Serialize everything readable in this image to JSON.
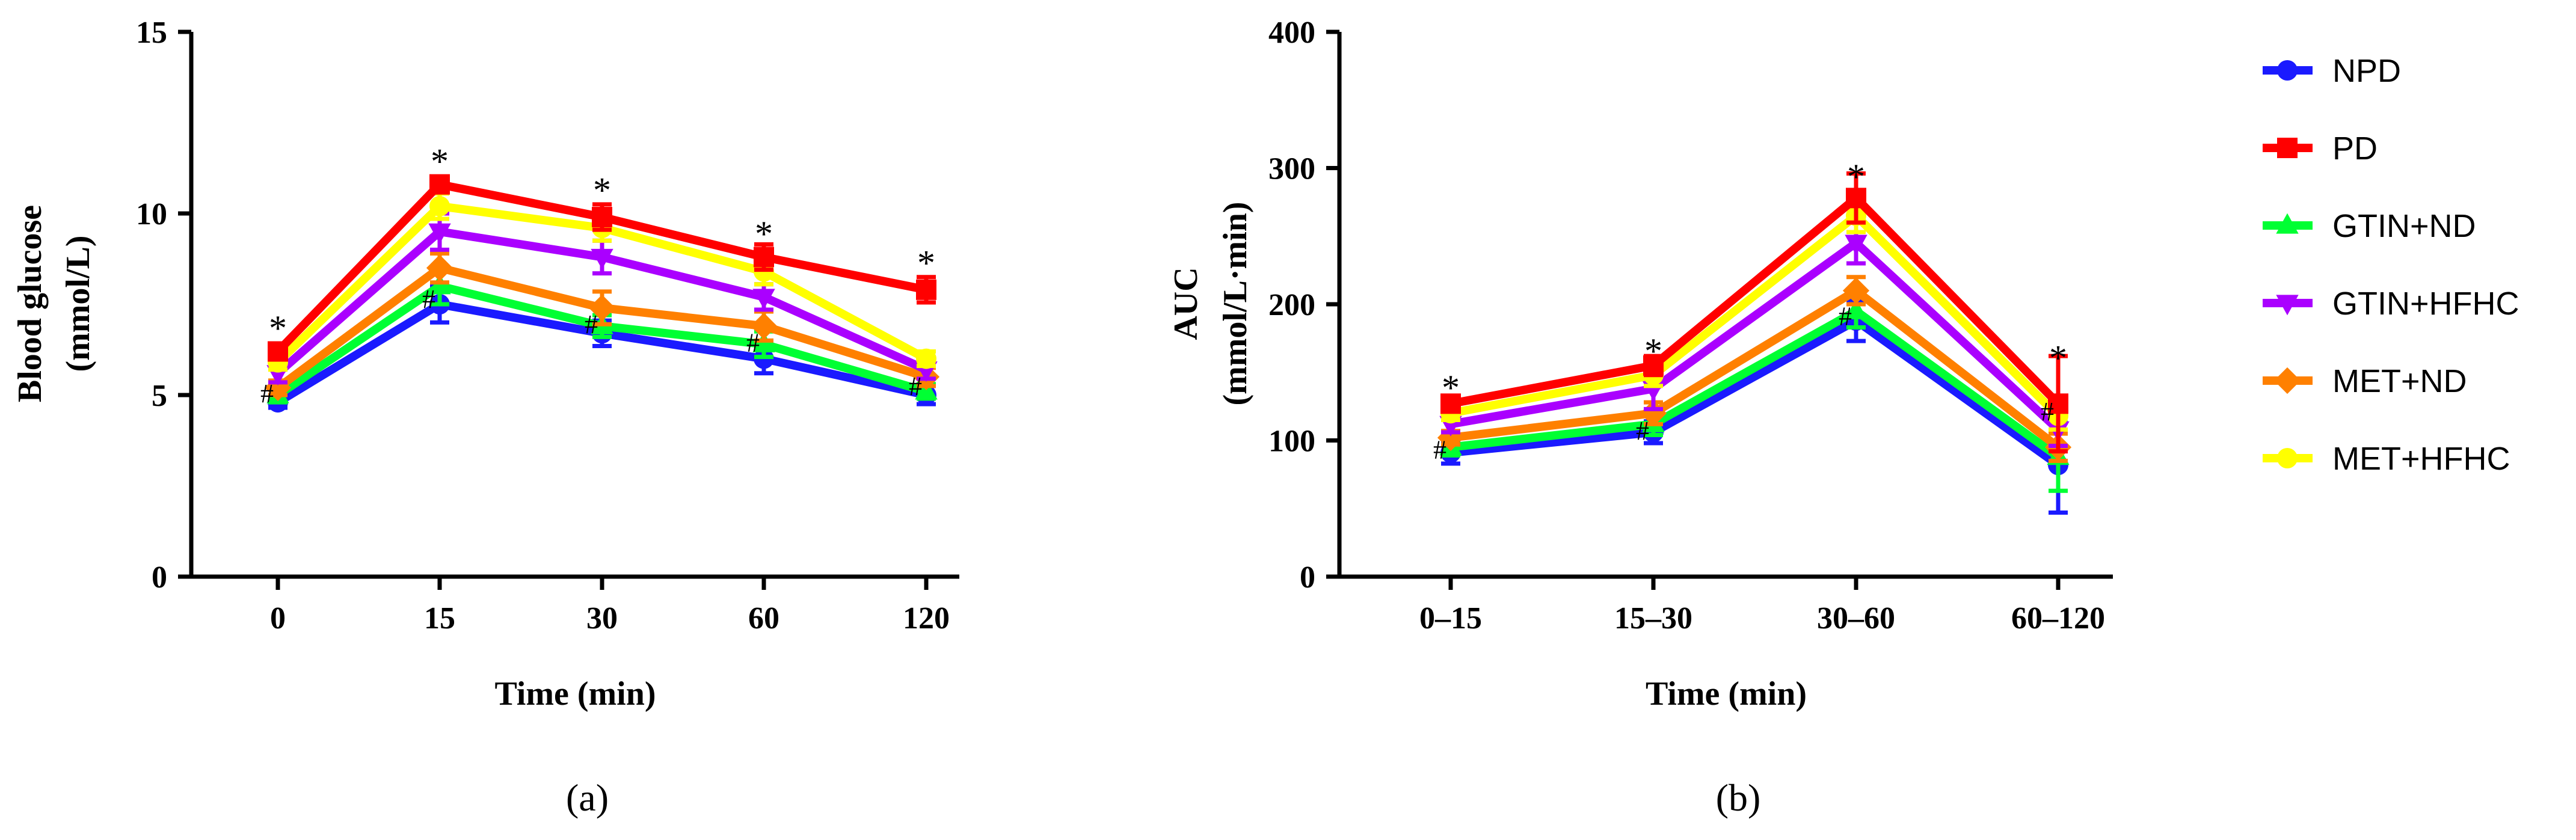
{
  "chart_data": [
    {
      "panel_label": "(a)",
      "type": "line",
      "title": "",
      "xlabel": "Time (min)",
      "ylabel_line1": "Blood glucose",
      "ylabel_line2": "(mmol/L)",
      "categories": [
        "0",
        "15",
        "30",
        "60",
        "120"
      ],
      "ylim": [
        0,
        15
      ],
      "yticks": [
        0,
        5,
        10,
        15
      ],
      "series": [
        {
          "name": "NPD",
          "values": [
            4.8,
            7.5,
            6.7,
            6.0,
            5.0
          ],
          "errors": [
            0.15,
            0.5,
            0.35,
            0.4,
            0.25
          ]
        },
        {
          "name": "PD",
          "values": [
            6.2,
            10.8,
            9.9,
            8.8,
            7.9
          ],
          "errors": [
            0.2,
            0.2,
            0.35,
            0.35,
            0.35
          ]
        },
        {
          "name": "GTIN+ND",
          "values": [
            5.0,
            8.0,
            6.9,
            6.4,
            5.1
          ],
          "errors": [
            0.2,
            0.5,
            0.3,
            0.35,
            0.2
          ]
        },
        {
          "name": "GTIN+HFHC",
          "values": [
            5.6,
            9.5,
            8.8,
            7.7,
            5.7
          ],
          "errors": [
            0.25,
            0.5,
            0.45,
            0.35,
            0.25
          ]
        },
        {
          "name": "MET+ND",
          "values": [
            5.2,
            8.5,
            7.4,
            6.9,
            5.5
          ],
          "errors": [
            0.2,
            0.4,
            0.45,
            0.4,
            0.25
          ]
        },
        {
          "name": "MET+HFHC",
          "values": [
            5.9,
            10.2,
            9.6,
            8.4,
            6.0
          ],
          "errors": [
            0.2,
            0.35,
            0.35,
            0.35,
            0.2
          ]
        }
      ],
      "annotations": [
        {
          "text": "*",
          "index": 0,
          "y": 7.0
        },
        {
          "text": "*",
          "index": 1,
          "y": 11.6
        },
        {
          "text": "*",
          "index": 2,
          "y": 10.8
        },
        {
          "text": "*",
          "index": 3,
          "y": 9.6
        },
        {
          "text": "*",
          "index": 4,
          "y": 8.8
        },
        {
          "text": "#",
          "index": 0,
          "y": 5.0
        },
        {
          "text": "#",
          "index": 1,
          "y": 7.6
        },
        {
          "text": "#",
          "index": 2,
          "y": 6.9
        },
        {
          "text": "#",
          "index": 3,
          "y": 6.4
        },
        {
          "text": "#",
          "index": 4,
          "y": 5.2
        }
      ]
    },
    {
      "panel_label": "(b)",
      "type": "line",
      "title": "",
      "xlabel": "Time (min)",
      "ylabel_line1": "AUC",
      "ylabel_line2": "(mmol/L·min)",
      "categories": [
        "0–15",
        "15–30",
        "30–60",
        "60–120"
      ],
      "ylim": [
        0,
        400
      ],
      "yticks": [
        0,
        100,
        200,
        300,
        400
      ],
      "series": [
        {
          "name": "NPD",
          "values": [
            91,
            106,
            188,
            82
          ],
          "errors": [
            8,
            8,
            15,
            35
          ]
        },
        {
          "name": "PD",
          "values": [
            127,
            155,
            278,
            127
          ],
          "errors": [
            5,
            7,
            18,
            35
          ]
        },
        {
          "name": "GTIN+ND",
          "values": [
            95,
            112,
            195,
            88
          ],
          "errors": [
            6,
            8,
            12,
            25
          ]
        },
        {
          "name": "GTIN+HFHC",
          "values": [
            112,
            138,
            245,
            108
          ],
          "errors": [
            6,
            15,
            15,
            12
          ]
        },
        {
          "name": "MET+ND",
          "values": [
            102,
            120,
            210,
            95
          ],
          "errors": [
            5,
            8,
            10,
            10
          ]
        },
        {
          "name": "MET+HFHC",
          "values": [
            120,
            148,
            265,
            118
          ],
          "errors": [
            5,
            8,
            12,
            10
          ]
        }
      ],
      "annotations": [
        {
          "text": "*",
          "index": 0,
          "y": 143
        },
        {
          "text": "*",
          "index": 1,
          "y": 170
        },
        {
          "text": "*",
          "index": 2,
          "y": 298
        },
        {
          "text": "*",
          "index": 3,
          "y": 165
        },
        {
          "text": "#",
          "index": 0,
          "y": 92
        },
        {
          "text": "#",
          "index": 1,
          "y": 106
        },
        {
          "text": "#",
          "index": 2,
          "y": 190
        },
        {
          "text": "#",
          "index": 3,
          "y": 120
        }
      ]
    }
  ],
  "legend": {
    "position": "right",
    "items": [
      {
        "name": "NPD",
        "color": "#1a1aff",
        "marker": "circle"
      },
      {
        "name": "PD",
        "color": "#ff0000",
        "marker": "square"
      },
      {
        "name": "GTIN+ND",
        "color": "#00ff33",
        "marker": "triangle-up"
      },
      {
        "name": "GTIN+HFHC",
        "color": "#aa00ff",
        "marker": "triangle-down"
      },
      {
        "name": "MET+ND",
        "color": "#ff8000",
        "marker": "diamond"
      },
      {
        "name": "MET+HFHC",
        "color": "#ffff00",
        "marker": "circle"
      }
    ]
  },
  "draw_order": [
    "NPD",
    "GTIN+ND",
    "MET+ND",
    "GTIN+HFHC",
    "MET+HFHC",
    "PD"
  ]
}
